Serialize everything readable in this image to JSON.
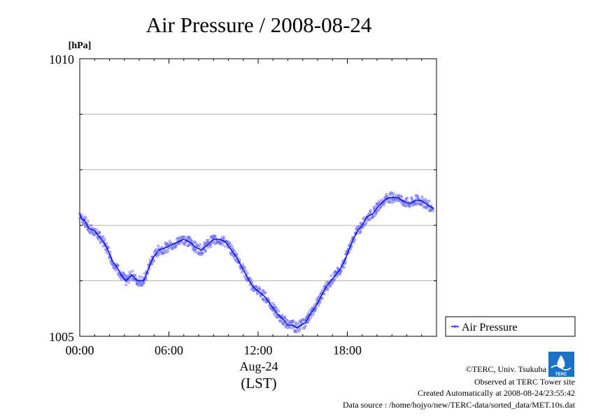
{
  "chart_data": {
    "type": "line",
    "title": "Air Pressure / 2008-08-24",
    "ylabel": "[hPa]",
    "xlabel": "(LST)",
    "x_sublabel": "Aug-24",
    "ylim": [
      1005,
      1010
    ],
    "yticks": [
      "1010",
      "1005"
    ],
    "ygrid": [
      1006,
      1007,
      1008,
      1009
    ],
    "xlim_hours": [
      0,
      24
    ],
    "xticks": [
      {
        "hour": 0,
        "label": "00:00"
      },
      {
        "hour": 6,
        "label": "06:00"
      },
      {
        "hour": 12,
        "label": "12:00"
      },
      {
        "hour": 18,
        "label": "18:00"
      }
    ],
    "grid": true,
    "legend": "right",
    "series": [
      {
        "name": "Air Pressure",
        "color": "#0000ff",
        "x_hours": [
          0,
          0.15,
          0.3,
          0.6,
          1.0,
          1.3,
          1.6,
          1.9,
          2.2,
          2.5,
          2.8,
          3.1,
          3.5,
          3.9,
          4.3,
          4.6,
          4.9,
          5.3,
          5.8,
          6.2,
          6.6,
          7.0,
          7.4,
          7.8,
          8.2,
          8.6,
          9.0,
          9.4,
          9.8,
          10.2,
          10.6,
          10.9,
          11.2,
          11.5,
          11.8,
          12.1,
          12.5,
          12.9,
          13.3,
          13.7,
          14.0,
          14.3,
          14.6,
          14.9,
          15.2,
          15.5,
          15.9,
          16.3,
          16.6,
          16.9,
          17.2,
          17.5,
          17.8,
          18.1,
          18.4,
          18.7,
          19.0,
          19.3,
          19.7,
          20.1,
          20.5,
          20.8,
          21.1,
          21.4,
          21.7,
          22.0,
          22.3,
          22.6,
          22.9,
          23.2,
          23.5,
          23.8
        ],
        "values": [
          1007.2,
          1007.1,
          1007.1,
          1006.95,
          1006.9,
          1006.8,
          1006.7,
          1006.55,
          1006.35,
          1006.25,
          1006.1,
          1006.0,
          1006.1,
          1006.0,
          1006.0,
          1006.2,
          1006.4,
          1006.55,
          1006.6,
          1006.65,
          1006.7,
          1006.75,
          1006.7,
          1006.6,
          1006.55,
          1006.65,
          1006.75,
          1006.75,
          1006.7,
          1006.55,
          1006.4,
          1006.25,
          1006.1,
          1005.95,
          1005.85,
          1005.8,
          1005.7,
          1005.55,
          1005.4,
          1005.3,
          1005.2,
          1005.2,
          1005.15,
          1005.2,
          1005.25,
          1005.4,
          1005.55,
          1005.75,
          1005.9,
          1006.0,
          1006.1,
          1006.2,
          1006.35,
          1006.55,
          1006.75,
          1006.9,
          1007.0,
          1007.15,
          1007.2,
          1007.35,
          1007.45,
          1007.5,
          1007.5,
          1007.5,
          1007.45,
          1007.4,
          1007.4,
          1007.45,
          1007.45,
          1007.4,
          1007.35,
          1007.3
        ]
      }
    ]
  },
  "credits": {
    "copyright": "©TERC, Univ. Tsukuba",
    "observed": "Observed at TERC Tower site",
    "created": "Created Automatically at 2008-08-24/23:55:42",
    "source": "Data source : /home/hojyo/new/TERC-data/sorted_data/MET.10s.dat",
    "logo_text": "TERC"
  }
}
